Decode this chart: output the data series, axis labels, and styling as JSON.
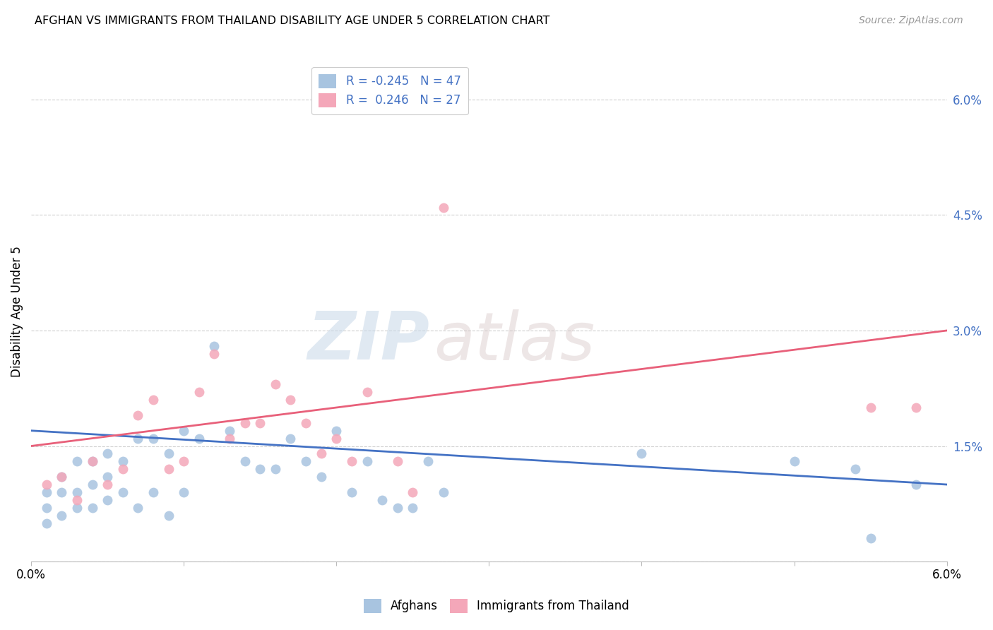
{
  "title": "AFGHAN VS IMMIGRANTS FROM THAILAND DISABILITY AGE UNDER 5 CORRELATION CHART",
  "source": "Source: ZipAtlas.com",
  "xlabel": "",
  "ylabel": "Disability Age Under 5",
  "xlim": [
    0.0,
    0.06
  ],
  "ylim": [
    0.0,
    0.065
  ],
  "yticks": [
    0.0,
    0.015,
    0.03,
    0.045,
    0.06
  ],
  "ytick_labels": [
    "",
    "1.5%",
    "3.0%",
    "4.5%",
    "6.0%"
  ],
  "xticks": [
    0.0,
    0.01,
    0.02,
    0.03,
    0.04,
    0.05,
    0.06
  ],
  "xtick_labels": [
    "0.0%",
    "",
    "",
    "",
    "",
    "",
    "6.0%"
  ],
  "afghans_color": "#a8c4e0",
  "thailand_color": "#f4a7b9",
  "line_afghan_color": "#4472c4",
  "line_thailand_color": "#e8607a",
  "legend_afghan_label": "R = -0.245   N = 47",
  "legend_thailand_label": "R =  0.246   N = 27",
  "afghans_x": [
    0.001,
    0.001,
    0.001,
    0.002,
    0.002,
    0.002,
    0.003,
    0.003,
    0.003,
    0.004,
    0.004,
    0.004,
    0.005,
    0.005,
    0.005,
    0.006,
    0.006,
    0.007,
    0.007,
    0.008,
    0.008,
    0.009,
    0.009,
    0.01,
    0.01,
    0.011,
    0.012,
    0.013,
    0.014,
    0.015,
    0.016,
    0.017,
    0.018,
    0.019,
    0.02,
    0.021,
    0.022,
    0.023,
    0.024,
    0.025,
    0.026,
    0.027,
    0.04,
    0.05,
    0.054,
    0.055,
    0.058
  ],
  "afghans_y": [
    0.009,
    0.007,
    0.005,
    0.011,
    0.009,
    0.006,
    0.013,
    0.009,
    0.007,
    0.013,
    0.01,
    0.007,
    0.014,
    0.011,
    0.008,
    0.013,
    0.009,
    0.016,
    0.007,
    0.016,
    0.009,
    0.014,
    0.006,
    0.017,
    0.009,
    0.016,
    0.028,
    0.017,
    0.013,
    0.012,
    0.012,
    0.016,
    0.013,
    0.011,
    0.017,
    0.009,
    0.013,
    0.008,
    0.007,
    0.007,
    0.013,
    0.009,
    0.014,
    0.013,
    0.012,
    0.003,
    0.01
  ],
  "thailand_x": [
    0.001,
    0.002,
    0.003,
    0.004,
    0.005,
    0.006,
    0.007,
    0.008,
    0.009,
    0.01,
    0.011,
    0.012,
    0.013,
    0.014,
    0.015,
    0.016,
    0.017,
    0.018,
    0.019,
    0.02,
    0.021,
    0.022,
    0.024,
    0.025,
    0.027,
    0.055,
    0.058
  ],
  "thailand_y": [
    0.01,
    0.011,
    0.008,
    0.013,
    0.01,
    0.012,
    0.019,
    0.021,
    0.012,
    0.013,
    0.022,
    0.027,
    0.016,
    0.018,
    0.018,
    0.023,
    0.021,
    0.018,
    0.014,
    0.016,
    0.013,
    0.022,
    0.013,
    0.009,
    0.046,
    0.02,
    0.02
  ],
  "watermark_text": "ZIP",
  "watermark_text2": "atlas",
  "background_color": "#ffffff",
  "grid_color": "#d0d0d0",
  "afghan_line_y0": 0.017,
  "afghan_line_y1": 0.01,
  "thailand_line_y0": 0.015,
  "thailand_line_y1": 0.03
}
